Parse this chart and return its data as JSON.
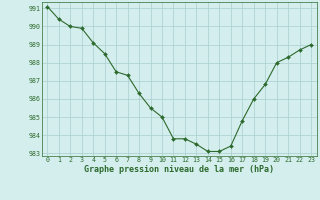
{
  "x": [
    0,
    1,
    2,
    3,
    4,
    5,
    6,
    7,
    8,
    9,
    10,
    11,
    12,
    13,
    14,
    15,
    16,
    17,
    18,
    19,
    20,
    21,
    22,
    23
  ],
  "y": [
    991.1,
    990.4,
    990.0,
    989.9,
    989.1,
    988.5,
    987.5,
    987.3,
    986.3,
    985.5,
    985.0,
    983.8,
    983.8,
    983.5,
    983.1,
    983.1,
    983.4,
    984.8,
    986.0,
    986.8,
    988.0,
    988.3,
    988.7,
    989.0
  ],
  "line_color": "#2d6a2d",
  "marker_color": "#2d6a2d",
  "bg_color": "#d4eeed",
  "grid_color": "#aacece",
  "xlabel": "Graphe pression niveau de la mer (hPa)",
  "ylim_min": 983,
  "ylim_max": 991,
  "xlim_min": 0,
  "xlim_max": 23,
  "yticks": [
    983,
    984,
    985,
    986,
    987,
    988,
    989,
    990,
    991
  ],
  "xticks": [
    0,
    1,
    2,
    3,
    4,
    5,
    6,
    7,
    8,
    9,
    10,
    11,
    12,
    13,
    14,
    15,
    16,
    17,
    18,
    19,
    20,
    21,
    22,
    23
  ],
  "tick_fontsize": 4.8,
  "label_fontsize": 6.0,
  "line_width": 0.8,
  "marker_size": 2.0
}
